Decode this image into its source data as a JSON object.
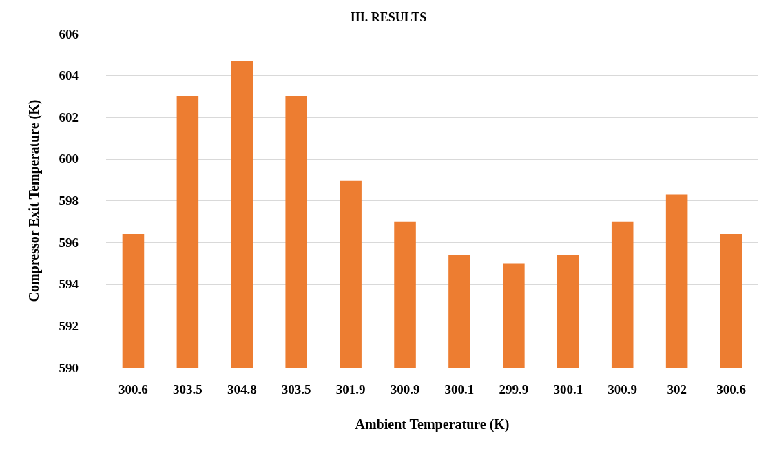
{
  "chart_data": {
    "type": "bar",
    "title": "III. RESULTS",
    "xlabel": "Ambient Temperature (K)",
    "ylabel": "Compressor Exit Temperature (K)",
    "categories": [
      "300.6",
      "303.5",
      "304.8",
      "303.5",
      "301.9",
      "300.9",
      "300.1",
      "299.9",
      "300.1",
      "300.9",
      "302",
      "300.6"
    ],
    "values": [
      596.4,
      603.0,
      604.7,
      603.0,
      598.95,
      597.0,
      595.4,
      595.0,
      595.4,
      597.0,
      598.3,
      596.4
    ],
    "color": "#ed7d31",
    "ylim": [
      590,
      606
    ],
    "yticks": [
      590,
      592,
      594,
      596,
      598,
      600,
      602,
      604,
      606
    ],
    "grid": "y"
  }
}
